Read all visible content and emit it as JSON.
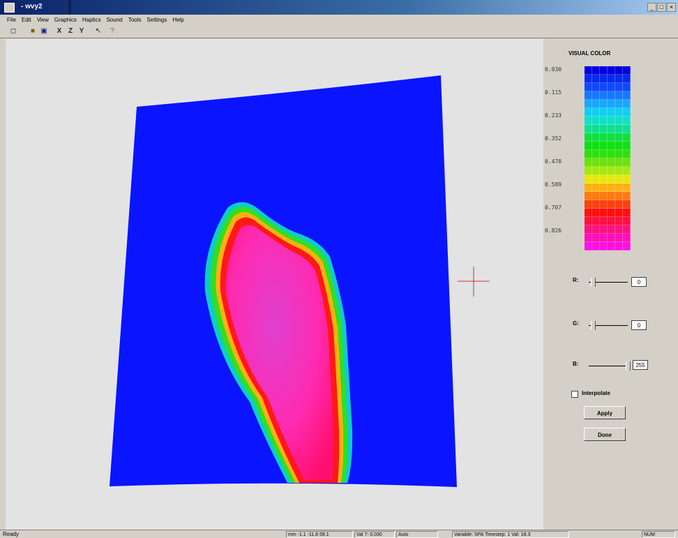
{
  "window": {
    "title": "- wvy2",
    "controls": [
      "_",
      "□",
      "×"
    ]
  },
  "menubar": [
    "File",
    "Edit",
    "View",
    "Graphics",
    "Haptics",
    "Sound",
    "Tools",
    "Settings",
    "Help"
  ],
  "toolbar": {
    "icons": [
      "new-icon",
      "open-icon",
      "save-icon",
      "x-axis-icon",
      "z-axis-icon",
      "y-axis-icon",
      "pointer-icon",
      "help-icon"
    ],
    "glyphs": [
      "◻",
      "■",
      "▣",
      "X",
      "Z",
      "Y",
      "↖",
      "?"
    ]
  },
  "legend": {
    "title": "VISUAL COLOR",
    "ticks": [
      "0.030",
      "0.115",
      "0.233",
      "0.352",
      "0.470",
      "0.589",
      "0.707",
      "0.826"
    ],
    "palette_colors": [
      "#0000e0",
      "#0a2af0",
      "#1048ff",
      "#1878ff",
      "#18a8ff",
      "#10d0f0",
      "#10e0c8",
      "#10e090",
      "#10e040",
      "#10e010",
      "#30e010",
      "#70e010",
      "#a8e810",
      "#e8e810",
      "#ffb010",
      "#ff7a10",
      "#ff4010",
      "#ff1010",
      "#ff1040",
      "#ff1080",
      "#ff10b8",
      "#ff10e0"
    ],
    "accent_colors": {
      "field_blue": "#0a14ff",
      "pink": "#ff10a0",
      "red": "#ff1010"
    }
  },
  "controls": {
    "r": {
      "label": "R:",
      "value": "0"
    },
    "g": {
      "label": "G:",
      "value": "0"
    },
    "b": {
      "label": "B:",
      "value": "255"
    },
    "interpolate_label": "Interpolate",
    "interpolate_checked": false,
    "apply_label": "Apply",
    "done_label": "Done"
  },
  "statusbar": {
    "ready": "Ready",
    "boxes": [
      "mm  -1.1  -11.8  59.1",
      "Val 7: 0.030",
      "Auto",
      "Variable: SPA  Timestep: 1  Val: 18.3",
      "NUM"
    ]
  }
}
